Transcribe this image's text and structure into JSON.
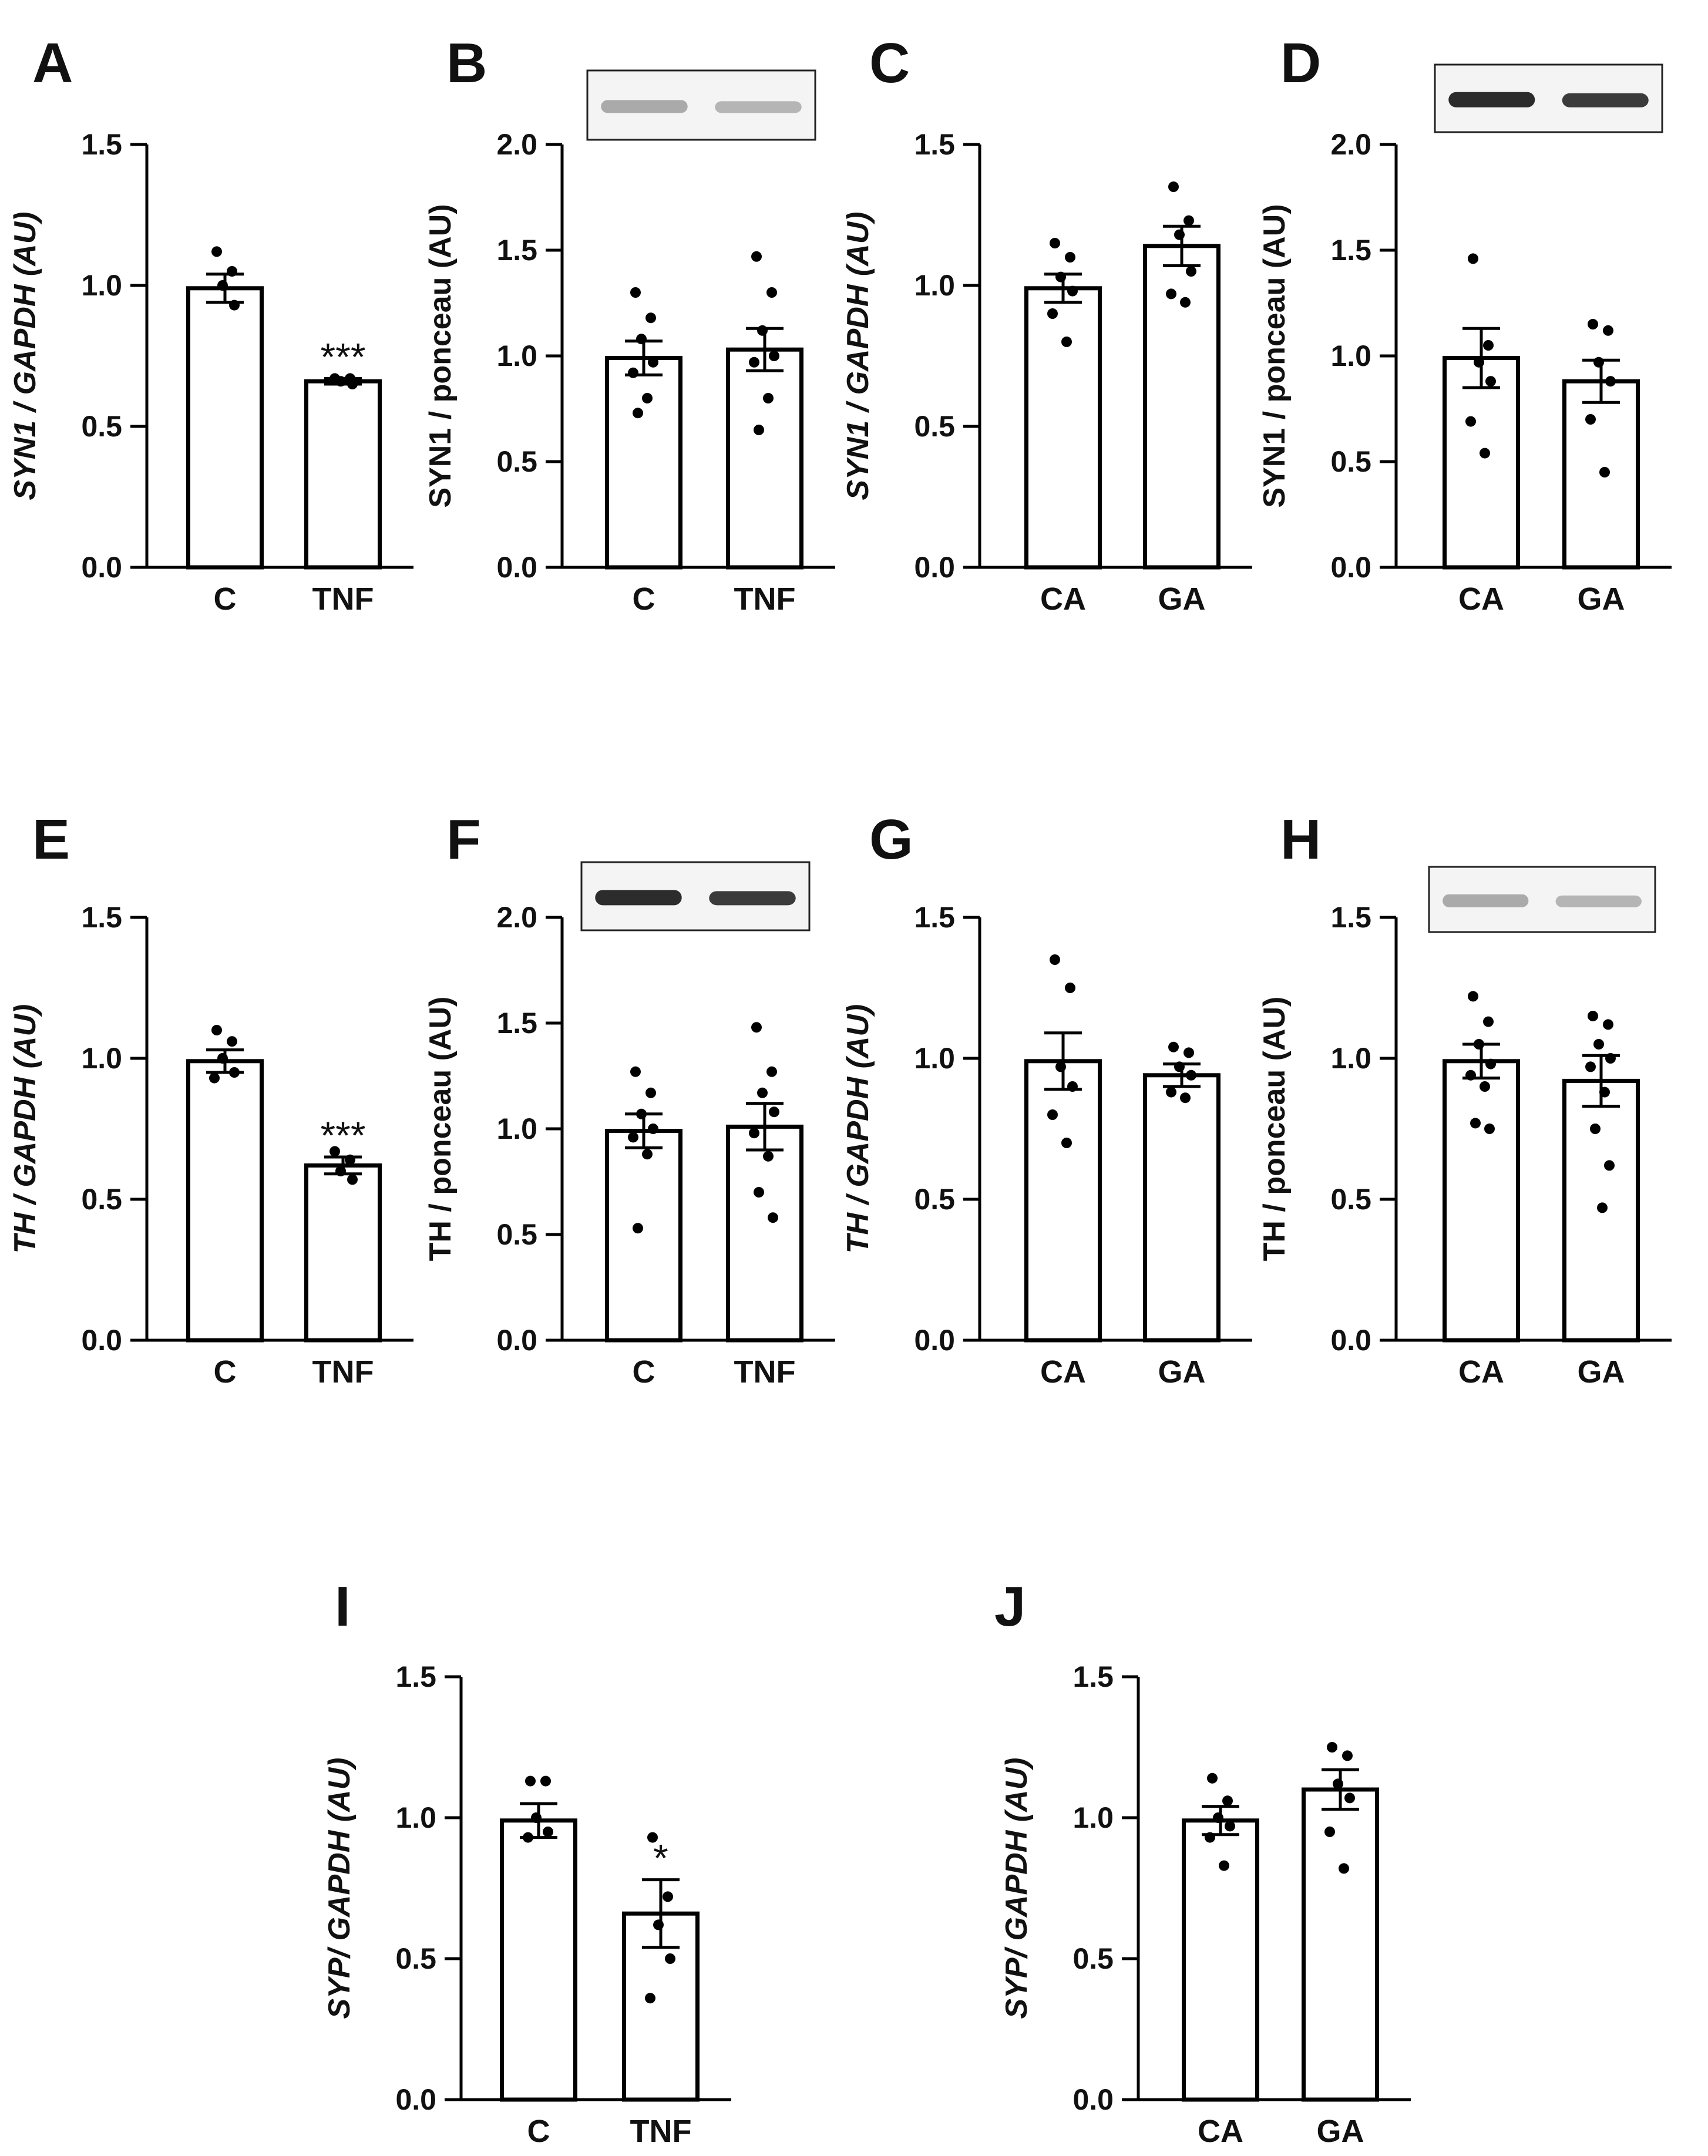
{
  "figure": {
    "chart_data": [
      {
        "panel": "A",
        "type": "bar",
        "ylabel": "SYN1 / GAPDH (AU)",
        "ylabel_italic": true,
        "ylim": [
          0,
          1.5
        ],
        "yticks": [
          0.0,
          0.5,
          1.0,
          1.5
        ],
        "tick_labels": [
          "0.0",
          "0.5",
          "1.0",
          "1.5"
        ],
        "categories": [
          "C",
          "TNF"
        ],
        "values": [
          0.99,
          0.66
        ],
        "sem": [
          0.05,
          0.01
        ],
        "significance": [
          "",
          "***"
        ],
        "points": [
          [
            1.12,
            1.05,
            1.0,
            0.93
          ],
          [
            0.67,
            0.67,
            0.66,
            0.65
          ]
        ],
        "has_blot": false
      },
      {
        "panel": "B",
        "type": "bar",
        "ylabel": "SYN1 / ponceau (AU)",
        "ylabel_italic": false,
        "ylim": [
          0,
          2.0
        ],
        "yticks": [
          0.0,
          0.5,
          1.0,
          1.5,
          2.0
        ],
        "tick_labels": [
          "0.0",
          "0.5",
          "1.0",
          "1.5",
          "2.0"
        ],
        "categories": [
          "C",
          "TNF"
        ],
        "values": [
          0.99,
          1.03
        ],
        "sem": [
          0.08,
          0.1
        ],
        "significance": [
          "",
          ""
        ],
        "points": [
          [
            1.3,
            1.18,
            1.08,
            0.97,
            0.92,
            0.8,
            0.73
          ],
          [
            1.47,
            1.3,
            1.12,
            1.0,
            0.97,
            0.8,
            0.65
          ]
        ],
        "has_blot": true,
        "blot_style": "faint"
      },
      {
        "panel": "C",
        "type": "bar",
        "ylabel": "SYN1 / GAPDH (AU)",
        "ylabel_italic": true,
        "ylim": [
          0,
          1.5
        ],
        "yticks": [
          0.0,
          0.5,
          1.0,
          1.5
        ],
        "tick_labels": [
          "0.0",
          "0.5",
          "1.0",
          "1.5"
        ],
        "categories": [
          "CA",
          "GA"
        ],
        "values": [
          0.99,
          1.14
        ],
        "sem": [
          0.05,
          0.07
        ],
        "significance": [
          "",
          ""
        ],
        "points": [
          [
            1.15,
            1.1,
            1.03,
            0.98,
            0.9,
            0.8
          ],
          [
            1.35,
            1.23,
            1.18,
            1.05,
            0.97,
            0.94
          ]
        ],
        "has_blot": false
      },
      {
        "panel": "D",
        "type": "bar",
        "ylabel": "SYN1 / ponceau (AU)",
        "ylabel_italic": false,
        "ylim": [
          0,
          2.0
        ],
        "yticks": [
          0.0,
          0.5,
          1.0,
          1.5,
          2.0
        ],
        "tick_labels": [
          "0.0",
          "0.5",
          "1.0",
          "1.5",
          "2.0"
        ],
        "categories": [
          "CA",
          "GA"
        ],
        "values": [
          0.99,
          0.88
        ],
        "sem": [
          0.14,
          0.1
        ],
        "significance": [
          "",
          ""
        ],
        "points": [
          [
            1.46,
            1.05,
            0.97,
            0.88,
            0.69,
            0.54
          ],
          [
            1.15,
            1.12,
            0.97,
            0.88,
            0.7,
            0.45
          ]
        ],
        "has_blot": true,
        "blot_style": "dark"
      },
      {
        "panel": "E",
        "type": "bar",
        "ylabel": "TH / GAPDH (AU)",
        "ylabel_italic": true,
        "ylim": [
          0,
          1.5
        ],
        "yticks": [
          0.0,
          0.5,
          1.0,
          1.5
        ],
        "tick_labels": [
          "0.0",
          "0.5",
          "1.0",
          "1.5"
        ],
        "categories": [
          "C",
          "TNF"
        ],
        "values": [
          0.99,
          0.62
        ],
        "sem": [
          0.04,
          0.03
        ],
        "significance": [
          "",
          "***"
        ],
        "points": [
          [
            1.1,
            1.06,
            1.0,
            0.95,
            0.93
          ],
          [
            0.67,
            0.64,
            0.6,
            0.57
          ]
        ],
        "has_blot": false
      },
      {
        "panel": "F",
        "type": "bar",
        "ylabel": "TH / ponceau (AU)",
        "ylabel_italic": false,
        "ylim": [
          0,
          2.0
        ],
        "yticks": [
          0.0,
          0.5,
          1.0,
          1.5,
          2.0
        ],
        "tick_labels": [
          "0.0",
          "0.5",
          "1.0",
          "1.5",
          "2.0"
        ],
        "categories": [
          "C",
          "TNF"
        ],
        "values": [
          0.99,
          1.01
        ],
        "sem": [
          0.08,
          0.11
        ],
        "significance": [
          "",
          ""
        ],
        "points": [
          [
            1.27,
            1.17,
            1.07,
            1.0,
            0.96,
            0.88,
            0.53
          ],
          [
            1.48,
            1.27,
            1.17,
            1.08,
            0.98,
            0.87,
            0.7,
            0.58
          ]
        ],
        "has_blot": true,
        "blot_style": "dark"
      },
      {
        "panel": "G",
        "type": "bar",
        "ylabel": "TH / GAPDH (AU)",
        "ylabel_italic": true,
        "ylim": [
          0,
          1.5
        ],
        "yticks": [
          0.0,
          0.5,
          1.0,
          1.5
        ],
        "tick_labels": [
          "0.0",
          "0.5",
          "1.0",
          "1.5"
        ],
        "categories": [
          "CA",
          "GA"
        ],
        "values": [
          0.99,
          0.94
        ],
        "sem": [
          0.1,
          0.04
        ],
        "significance": [
          "",
          ""
        ],
        "points": [
          [
            1.35,
            1.25,
            0.97,
            0.9,
            0.8,
            0.7
          ],
          [
            1.04,
            1.02,
            0.97,
            0.94,
            0.88,
            0.86
          ]
        ],
        "has_blot": false
      },
      {
        "panel": "H",
        "type": "bar",
        "ylabel": "TH / ponceau (AU)",
        "ylabel_italic": false,
        "ylim": [
          0,
          1.5
        ],
        "yticks": [
          0.0,
          0.5,
          1.0,
          1.5
        ],
        "tick_labels": [
          "0.0",
          "0.5",
          "1.0",
          "1.5"
        ],
        "categories": [
          "CA",
          "GA"
        ],
        "values": [
          0.99,
          0.92
        ],
        "sem": [
          0.06,
          0.09
        ],
        "significance": [
          "",
          ""
        ],
        "points": [
          [
            1.22,
            1.13,
            1.05,
            0.98,
            0.94,
            0.9,
            0.77,
            0.75
          ],
          [
            1.15,
            1.12,
            1.05,
            1.0,
            0.97,
            0.88,
            0.75,
            0.62,
            0.47
          ]
        ],
        "has_blot": true,
        "blot_style": "faint"
      },
      {
        "panel": "I",
        "type": "bar",
        "ylabel": "SYP/ GAPDH (AU)",
        "ylabel_italic": true,
        "ylim": [
          0,
          1.5
        ],
        "yticks": [
          0.0,
          0.5,
          1.0,
          1.5
        ],
        "tick_labels": [
          "0.0",
          "0.5",
          "1.0",
          "1.5"
        ],
        "categories": [
          "C",
          "TNF"
        ],
        "values": [
          0.99,
          0.66
        ],
        "sem": [
          0.06,
          0.12
        ],
        "significance": [
          "",
          "*"
        ],
        "points": [
          [
            1.13,
            1.13,
            1.0,
            0.95,
            0.93
          ],
          [
            0.93,
            0.72,
            0.62,
            0.5,
            0.36
          ]
        ],
        "has_blot": false
      },
      {
        "panel": "J",
        "type": "bar",
        "ylabel": "SYP/ GAPDH (AU)",
        "ylabel_italic": true,
        "ylim": [
          0,
          1.5
        ],
        "yticks": [
          0.0,
          0.5,
          1.0,
          1.5
        ],
        "tick_labels": [
          "0.0",
          "0.5",
          "1.0",
          "1.5"
        ],
        "categories": [
          "CA",
          "GA"
        ],
        "values": [
          0.99,
          1.1
        ],
        "sem": [
          0.05,
          0.07
        ],
        "significance": [
          "",
          ""
        ],
        "points": [
          [
            1.14,
            1.06,
            1.0,
            0.97,
            0.93,
            0.83
          ],
          [
            1.25,
            1.22,
            1.12,
            1.07,
            0.95,
            0.82
          ]
        ],
        "has_blot": false
      }
    ]
  }
}
